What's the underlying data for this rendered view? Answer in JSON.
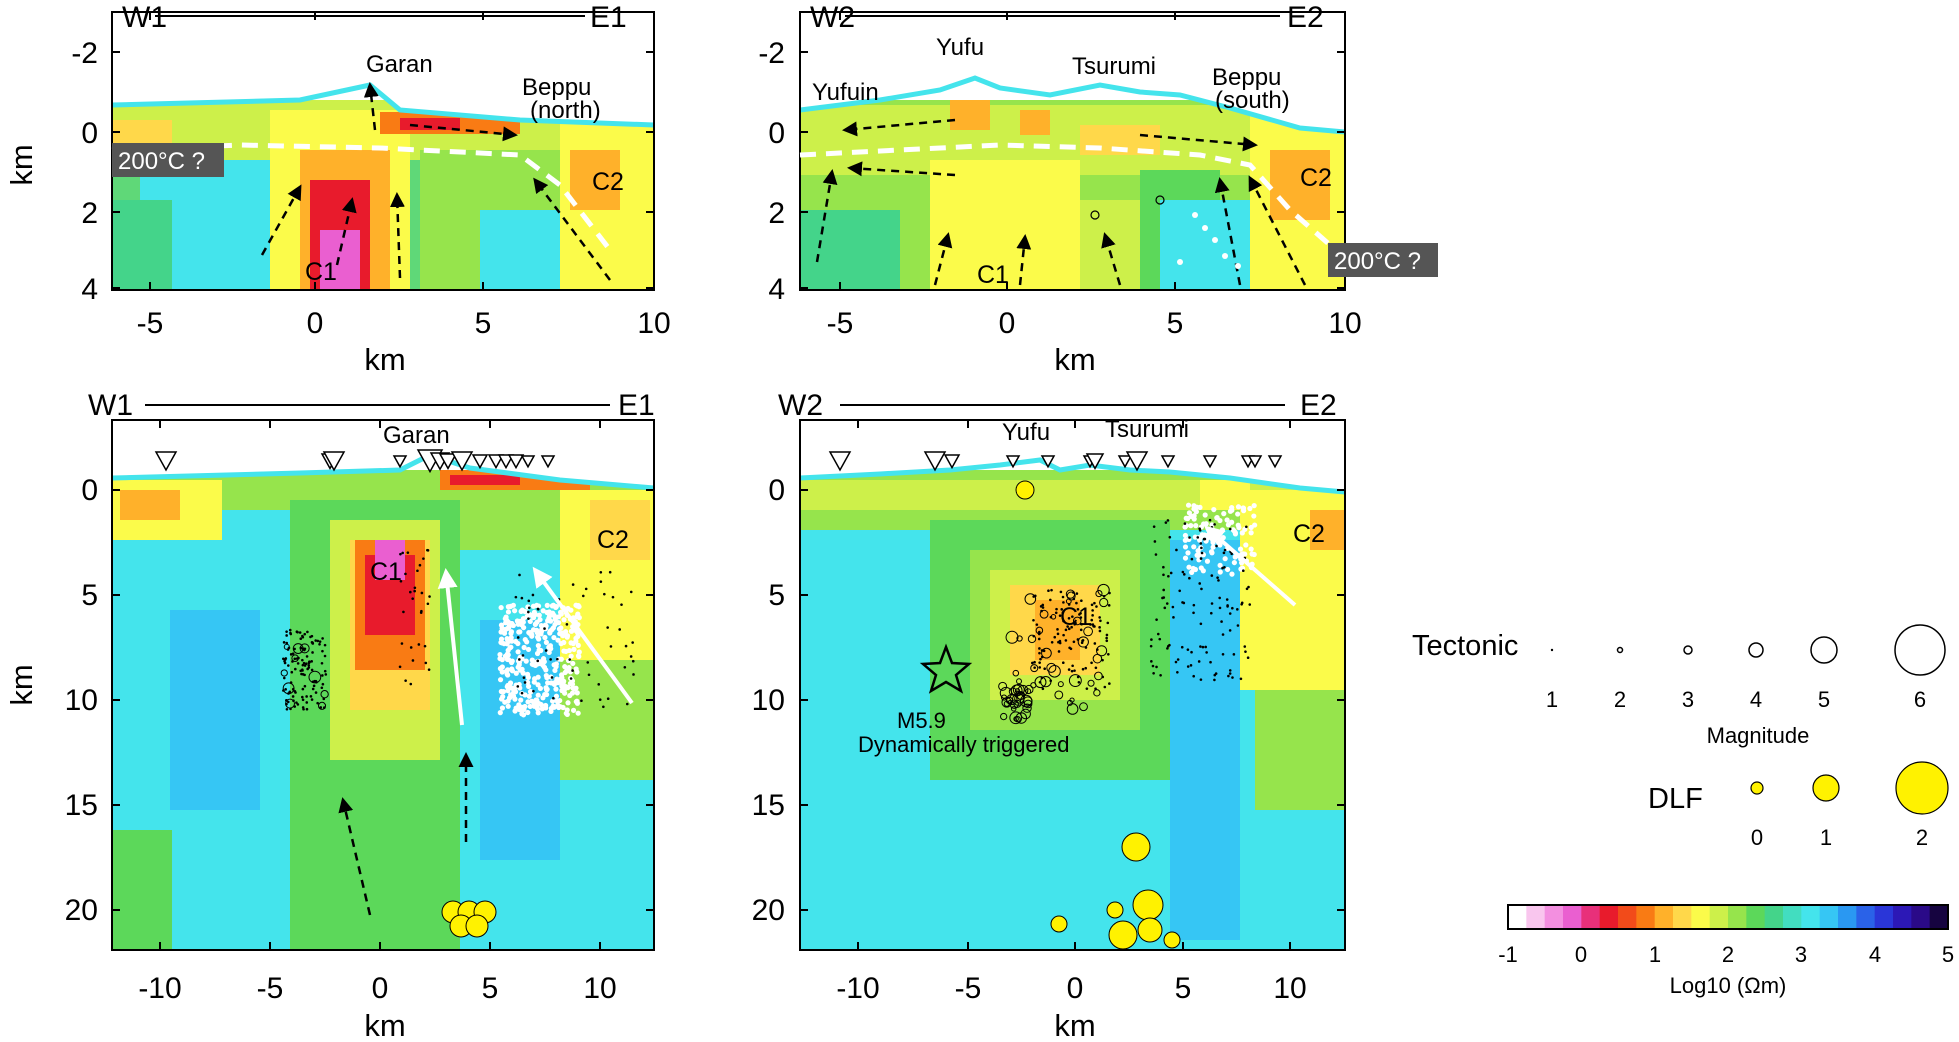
{
  "colors": {
    "cbar": [
      "#ffffff",
      "#f9c6ee",
      "#f38fe0",
      "#ea5fd0",
      "#e8307a",
      "#e81b2c",
      "#f24b1a",
      "#f97b14",
      "#ffb12a",
      "#ffd84a",
      "#fbfb4a",
      "#cdf04a",
      "#96e44c",
      "#5cd85a",
      "#44d48a",
      "#42ddc0",
      "#44e4ec",
      "#36c6f4",
      "#2a98f2",
      "#2a62e8",
      "#2a36d8",
      "#2c18b6",
      "#2a0a88",
      "#160440"
    ],
    "dlf": "#fff200",
    "arrow_black": "#000000",
    "arrow_white": "#ffffff",
    "isotherm": "#ffffff",
    "label_box": "#555555"
  },
  "panels": {
    "top_left": {
      "profile_w": "W1",
      "profile_e": "E1",
      "xticks": [
        "-5",
        "0",
        "5",
        "10"
      ],
      "yticks": [
        "-2",
        "0",
        "2",
        "4"
      ],
      "xlabel": "km",
      "ylabel": "km",
      "places": [
        "Garan",
        "Beppu",
        "(north)"
      ],
      "conductors": [
        "C1",
        "C2"
      ],
      "iso_label": "200°C ?"
    },
    "top_right": {
      "profile_w": "W2",
      "profile_e": "E2",
      "xticks": [
        "-5",
        "0",
        "5",
        "10"
      ],
      "yticks": [
        "-2",
        "0",
        "2",
        "4"
      ],
      "xlabel": "km",
      "places": [
        "Yufuin",
        "Yufu",
        "Tsurumi",
        "Beppu",
        "(south)"
      ],
      "conductors": [
        "C1",
        "C2"
      ],
      "iso_label": "200°C ?"
    },
    "bottom_left": {
      "profile_w": "W1",
      "profile_e": "E1",
      "xticks": [
        "-10",
        "-5",
        "0",
        "5",
        "10"
      ],
      "yticks": [
        "0",
        "5",
        "10",
        "15",
        "20"
      ],
      "xlabel": "km",
      "ylabel": "km",
      "places": [
        "Garan"
      ],
      "conductors": [
        "C1",
        "C2"
      ]
    },
    "bottom_right": {
      "profile_w": "W2",
      "profile_e": "E2",
      "xticks": [
        "-10",
        "-5",
        "0",
        "5",
        "10"
      ],
      "yticks": [
        "0",
        "5",
        "10",
        "15",
        "20"
      ],
      "xlabel": "km",
      "places": [
        "Yufu",
        "Tsurumi"
      ],
      "conductors": [
        "C1",
        "C2"
      ],
      "event_mag": "M5.9",
      "event_text": "Dynamically triggered"
    }
  },
  "legend": {
    "tectonic_label": "Tectonic",
    "magnitudes": [
      "1",
      "2",
      "3",
      "4",
      "5",
      "6"
    ],
    "magnitude_title": "Magnitude",
    "dlf_label": "DLF",
    "dlf_mags": [
      "0",
      "1",
      "2"
    ],
    "colorbar_ticks": [
      "-1",
      "0",
      "1",
      "2",
      "3",
      "4",
      "5"
    ],
    "colorbar_title": "Log10 (Ωm)"
  }
}
